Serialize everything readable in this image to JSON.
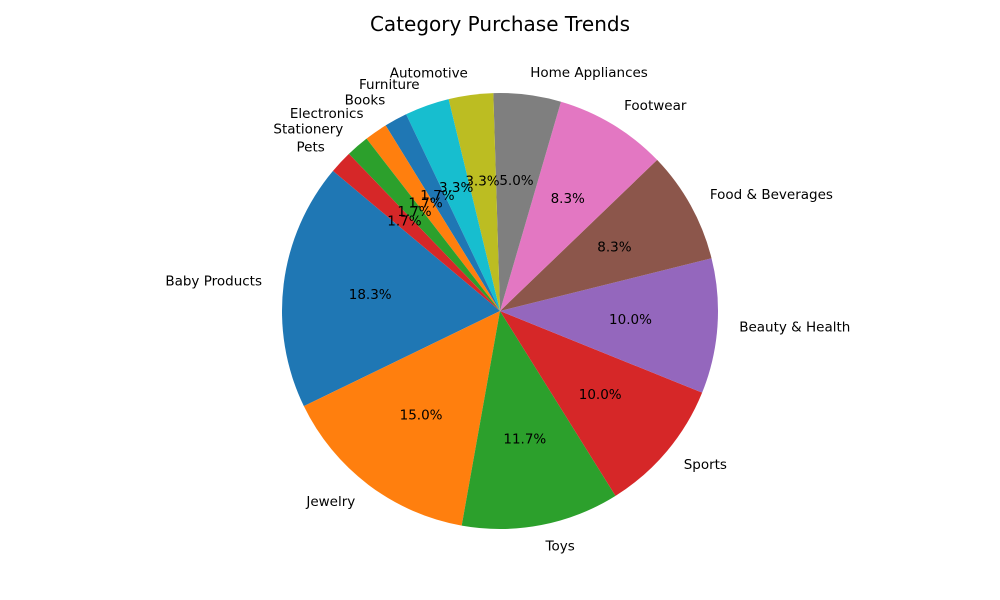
{
  "chart_data": {
    "type": "pie",
    "title": "Category Purchase Trends",
    "start_angle_deg": 140,
    "direction": "counterclockwise",
    "slices": [
      {
        "label": "Baby Products",
        "value": 18.3,
        "pct_label": "18.3%",
        "color": "#1f77b4"
      },
      {
        "label": "Jewelry",
        "value": 15.0,
        "pct_label": "15.0%",
        "color": "#ff7f0e"
      },
      {
        "label": "Toys",
        "value": 11.7,
        "pct_label": "11.7%",
        "color": "#2ca02c"
      },
      {
        "label": "Sports",
        "value": 10.0,
        "pct_label": "10.0%",
        "color": "#d62728"
      },
      {
        "label": "Beauty & Health",
        "value": 10.0,
        "pct_label": "10.0%",
        "color": "#9467bd"
      },
      {
        "label": "Food & Beverages",
        "value": 8.3,
        "pct_label": "8.3%",
        "color": "#8c564b"
      },
      {
        "label": "Footwear",
        "value": 8.3,
        "pct_label": "8.3%",
        "color": "#e377c2"
      },
      {
        "label": "Home Appliances",
        "value": 5.0,
        "pct_label": "5.0%",
        "color": "#7f7f7f"
      },
      {
        "label": "Automotive",
        "value": 3.3,
        "pct_label": "3.3%",
        "color": "#bcbd22"
      },
      {
        "label": "Furniture",
        "value": 3.3,
        "pct_label": "3.3%",
        "color": "#17becf"
      },
      {
        "label": "Books",
        "value": 1.7,
        "pct_label": "1.7%",
        "color": "#1f77b4"
      },
      {
        "label": "Electronics",
        "value": 1.7,
        "pct_label": "1.7%",
        "color": "#ff7f0e"
      },
      {
        "label": "Stationery",
        "value": 1.7,
        "pct_label": "1.7%",
        "color": "#2ca02c"
      },
      {
        "label": "Pets",
        "value": 1.7,
        "pct_label": "1.7%",
        "color": "#d62728"
      }
    ]
  }
}
